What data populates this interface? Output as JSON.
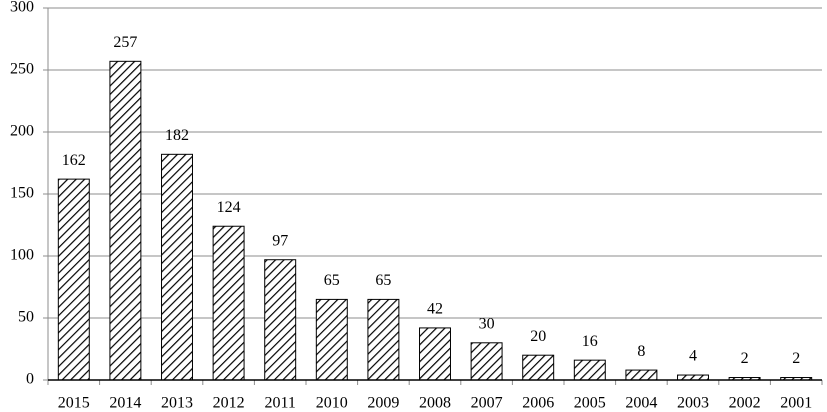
{
  "chart_data": {
    "type": "bar",
    "categories": [
      "2015",
      "2014",
      "2013",
      "2012",
      "2011",
      "2010",
      "2009",
      "2008",
      "2007",
      "2006",
      "2005",
      "2004",
      "2003",
      "2002",
      "2001"
    ],
    "values": [
      162,
      257,
      182,
      124,
      97,
      65,
      65,
      42,
      30,
      20,
      16,
      8,
      4,
      2,
      2
    ],
    "color": "#000000",
    "ylim": [
      0,
      300
    ],
    "yticks": [
      0,
      50,
      100,
      150,
      200,
      250,
      300
    ],
    "grid": true
  }
}
